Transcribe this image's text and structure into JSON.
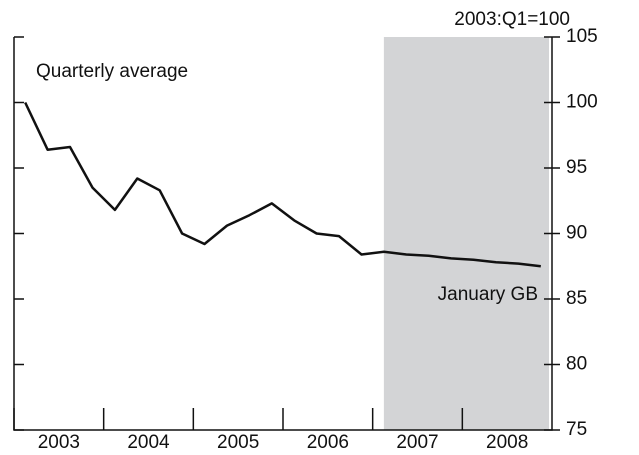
{
  "chart_data": {
    "type": "line",
    "y_axis_label": "2003:Q1=100",
    "annotations": [
      "Quarterly average",
      "January GB"
    ],
    "categories": [
      "2003",
      null,
      null,
      null,
      "2004",
      null,
      null,
      null,
      "2005",
      null,
      null,
      null,
      "2006",
      null,
      null,
      null,
      "2007",
      null,
      null,
      null,
      "2008",
      null,
      null,
      null
    ],
    "values": [
      100,
      96.4,
      96.6,
      93.5,
      91.8,
      94.2,
      93.3,
      90.0,
      89.2,
      90.6,
      91.4,
      92.3,
      91.0,
      90.0,
      89.8,
      88.4,
      88.6,
      88.4,
      88.3,
      88.1,
      88.0,
      87.8,
      87.7,
      87.5
    ],
    "color": "#111111",
    "shade_color": "#d3d4d6",
    "ylim": [
      75,
      105
    ],
    "yticks": [
      75,
      80,
      85,
      90,
      95,
      100,
      105
    ]
  }
}
